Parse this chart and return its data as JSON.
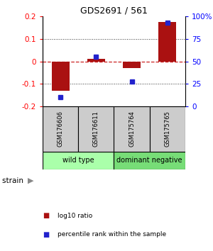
{
  "title": "GDS2691 / 561",
  "samples": [
    "GSM176606",
    "GSM176611",
    "GSM175764",
    "GSM175765"
  ],
  "log10_ratio": [
    -0.13,
    0.01,
    -0.03,
    0.175
  ],
  "percentile_rank": [
    10,
    55,
    28,
    93
  ],
  "ylim_left": [
    -0.2,
    0.2
  ],
  "ylim_right": [
    0,
    100
  ],
  "yticks_left": [
    -0.2,
    -0.1,
    0,
    0.1,
    0.2
  ],
  "ytick_labels_left": [
    "-0.2",
    "-0.1",
    "0",
    "0.1",
    "0.2"
  ],
  "yticks_right": [
    0,
    25,
    50,
    75,
    100
  ],
  "ytick_labels_right": [
    "0",
    "25",
    "50",
    "75",
    "100%"
  ],
  "bar_color": "#aa1111",
  "square_color": "#2222cc",
  "zero_line_color": "#cc2222",
  "dotted_line_color": "#333333",
  "groups": [
    {
      "label": "wild type",
      "color": "#aaffaa",
      "span": [
        0,
        1
      ]
    },
    {
      "label": "dominant negative",
      "color": "#77dd77",
      "span": [
        2,
        3
      ]
    }
  ],
  "strain_label": "strain",
  "legend_items": [
    {
      "color": "#aa1111",
      "label": "log10 ratio"
    },
    {
      "color": "#2222cc",
      "label": "percentile rank within the sample"
    }
  ],
  "background_color": "#ffffff"
}
